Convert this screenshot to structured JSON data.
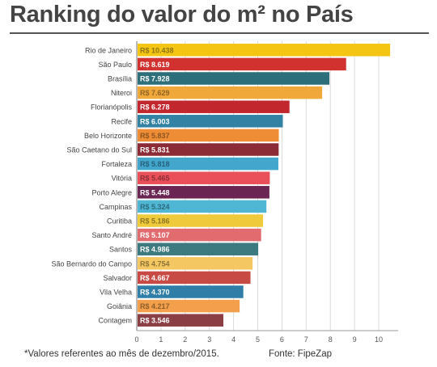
{
  "chart_data": {
    "type": "bar",
    "orientation": "horizontal",
    "title": "Ranking do valor do m² no País",
    "categories": [
      "Rio de Janeiro",
      "São Paulo",
      "Brasília",
      "Niteroi",
      "Florianópolis",
      "Recife",
      "Belo Horizonte",
      "São Caetano do Sul",
      "Fortaleza",
      "Vitória",
      "Porto Alegre",
      "Campinas",
      "Curitiba",
      "Santo André",
      "Santos",
      "São Bernardo do Campo",
      "Salvador",
      "Vila Velha",
      "Goiânia",
      "Contagem"
    ],
    "values": [
      10.438,
      8.619,
      7.928,
      7.629,
      6.278,
      6.003,
      5.837,
      5.831,
      5.818,
      5.465,
      5.448,
      5.324,
      5.186,
      5.107,
      4.986,
      4.754,
      4.667,
      4.37,
      4.217,
      3.546
    ],
    "value_labels": [
      "R$ 10.438",
      "R$ 8.619",
      "R$ 7.928",
      "R$ 7.629",
      "R$ 6.278",
      "R$ 6.003",
      "R$ 5.837",
      "R$ 5.831",
      "R$ 5.818",
      "R$ 5.465",
      "R$ 5.448",
      "R$ 5.324",
      "R$ 5.186",
      "R$ 5.107",
      "R$ 4.986",
      "R$ 4.754",
      "R$ 4.667",
      "R$ 4.370",
      "R$ 4.217",
      "R$ 3.546"
    ],
    "colors": [
      "#f4c613",
      "#d2322f",
      "#2d6e7b",
      "#f1a83b",
      "#c1272d",
      "#3282a4",
      "#ef8d36",
      "#8c2b35",
      "#43a6cc",
      "#e9505a",
      "#6a2552",
      "#4fb6d3",
      "#efcb3c",
      "#e26b6f",
      "#3d7a80",
      "#f4c763",
      "#c84a44",
      "#2f7ea7",
      "#f49f4b",
      "#8c3e45"
    ],
    "label_colors": [
      "#8c7412",
      "#ffffff",
      "#ffffff",
      "#8e6324",
      "#ffffff",
      "#ffffff",
      "#8c5320",
      "#ffffff",
      "#26607a",
      "#8c2f35",
      "#ffffff",
      "#2c6a7c",
      "#8c7624",
      "#ffffff",
      "#ffffff",
      "#8c7338",
      "#ffffff",
      "#ffffff",
      "#8c5e2a",
      "#ffffff"
    ],
    "xlim": [
      0,
      10.8
    ],
    "xticks": [
      0,
      1,
      2,
      3,
      4,
      5,
      6,
      7,
      8,
      9,
      10
    ],
    "grid": true
  },
  "footnote": "*Valores referentes ao mês de dezembro/2015.",
  "source": "Fonte: FipeZap"
}
